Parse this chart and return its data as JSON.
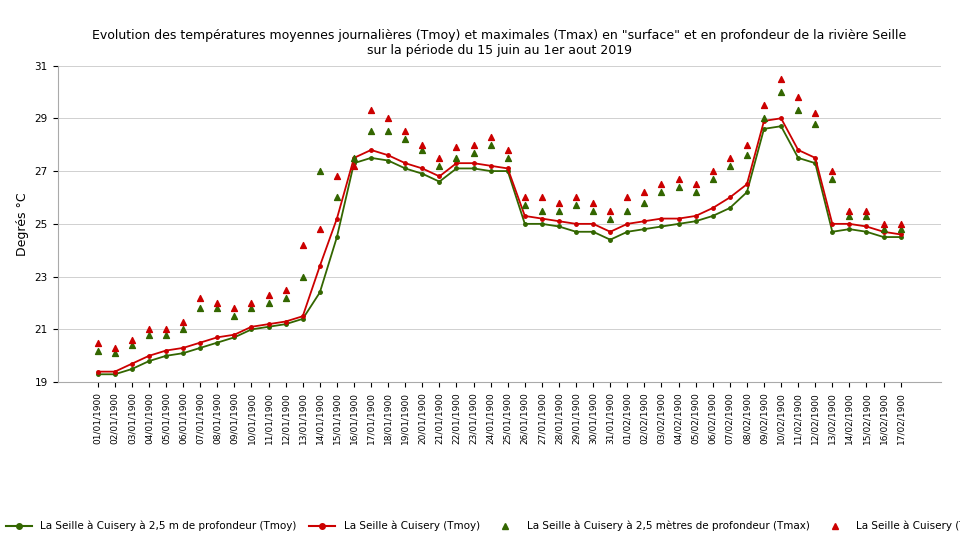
{
  "title_line1": "Evolution des températures moyennes journalières (Tmoy) et maximales (Tmax) en \"surface\" et en profondeur de la rivière Seille",
  "title_line2": "sur la période du 15 juin au 1er aout 2019",
  "ylabel": "Degrés °C",
  "ylim": [
    19,
    31
  ],
  "yticks": [
    19,
    21,
    23,
    25,
    27,
    29,
    31
  ],
  "background_color": "#ffffff",
  "grid_color": "#d0d0d0",
  "dates": [
    "01/01/1900",
    "02/01/1900",
    "03/01/1900",
    "04/01/1900",
    "05/01/1900",
    "06/01/1900",
    "07/01/1900",
    "08/01/1900",
    "09/01/1900",
    "10/01/1900",
    "11/01/1900",
    "12/01/1900",
    "13/01/1900",
    "14/01/1900",
    "15/01/1900",
    "16/01/1900",
    "17/01/1900",
    "18/01/1900",
    "19/01/1900",
    "20/01/1900",
    "21/01/1900",
    "22/01/1900",
    "23/01/1900",
    "24/01/1900",
    "25/01/1900",
    "26/01/1900",
    "27/01/1900",
    "28/01/1900",
    "29/01/1900",
    "30/01/1900",
    "31/01/1900",
    "01/02/1900",
    "02/02/1900",
    "03/02/1900",
    "04/02/1900",
    "05/02/1900",
    "06/02/1900",
    "07/02/1900",
    "08/02/1900",
    "09/02/1900",
    "10/02/1900",
    "11/02/1900",
    "12/02/1900",
    "13/02/1900",
    "14/02/1900",
    "15/02/1900",
    "16/02/1900",
    "17/02/1900"
  ],
  "tmoy_surface": [
    19.4,
    19.4,
    19.7,
    20.0,
    20.2,
    20.3,
    20.5,
    20.7,
    20.8,
    21.1,
    21.2,
    21.3,
    21.5,
    23.4,
    25.2,
    27.5,
    27.8,
    27.6,
    27.3,
    27.1,
    26.8,
    27.3,
    27.3,
    27.2,
    27.1,
    25.3,
    25.2,
    25.1,
    25.0,
    25.0,
    24.7,
    25.0,
    25.1,
    25.2,
    25.2,
    25.3,
    25.6,
    26.0,
    26.5,
    28.9,
    29.0,
    27.8,
    27.5,
    25.0,
    25.0,
    24.9,
    24.7,
    24.6
  ],
  "tmoy_depth": [
    19.3,
    19.3,
    19.5,
    19.8,
    20.0,
    20.1,
    20.3,
    20.5,
    20.7,
    21.0,
    21.1,
    21.2,
    21.4,
    22.4,
    24.5,
    27.3,
    27.5,
    27.4,
    27.1,
    26.9,
    26.6,
    27.1,
    27.1,
    27.0,
    27.0,
    25.0,
    25.0,
    24.9,
    24.7,
    24.7,
    24.4,
    24.7,
    24.8,
    24.9,
    25.0,
    25.1,
    25.3,
    25.6,
    26.2,
    28.6,
    28.7,
    27.5,
    27.3,
    24.7,
    24.8,
    24.7,
    24.5,
    24.5
  ],
  "tmax_surface": [
    20.5,
    20.3,
    20.6,
    21.0,
    21.0,
    21.3,
    22.2,
    22.0,
    21.8,
    22.0,
    22.3,
    22.5,
    24.2,
    24.8,
    26.8,
    27.2,
    29.3,
    29.0,
    28.5,
    28.0,
    27.5,
    27.9,
    28.0,
    28.3,
    27.8,
    26.0,
    26.0,
    25.8,
    26.0,
    25.8,
    25.5,
    26.0,
    26.2,
    26.5,
    26.7,
    26.5,
    27.0,
    27.5,
    28.0,
    29.5,
    30.5,
    29.8,
    29.2,
    27.0,
    25.5,
    25.5,
    25.0,
    25.0
  ],
  "tmax_depth": [
    20.2,
    20.1,
    20.4,
    20.8,
    20.8,
    21.0,
    21.8,
    21.8,
    21.5,
    21.8,
    22.0,
    22.2,
    23.0,
    27.0,
    26.0,
    27.5,
    28.5,
    28.5,
    28.2,
    27.8,
    27.2,
    27.5,
    27.7,
    28.0,
    27.5,
    25.7,
    25.5,
    25.5,
    25.7,
    25.5,
    25.2,
    25.5,
    25.8,
    26.2,
    26.4,
    26.2,
    26.7,
    27.2,
    27.6,
    29.0,
    30.0,
    29.3,
    28.8,
    26.7,
    25.3,
    25.3,
    24.8,
    24.8
  ],
  "color_surface": "#cc0000",
  "color_depth": "#336600",
  "legend_labels": [
    "La Seille à Cuisery à 2,5 m de profondeur (Tmoy)",
    "La Seille à Cuisery (Tmoy)",
    "La Seille à Cuisery à 2,5 mètres de profondeur (Tmax)",
    "La Seille à Cuisery (Tmax)"
  ],
  "title_fontsize": 9,
  "ylabel_fontsize": 9,
  "tick_fontsize": 6.5,
  "legend_fontsize": 7.5
}
